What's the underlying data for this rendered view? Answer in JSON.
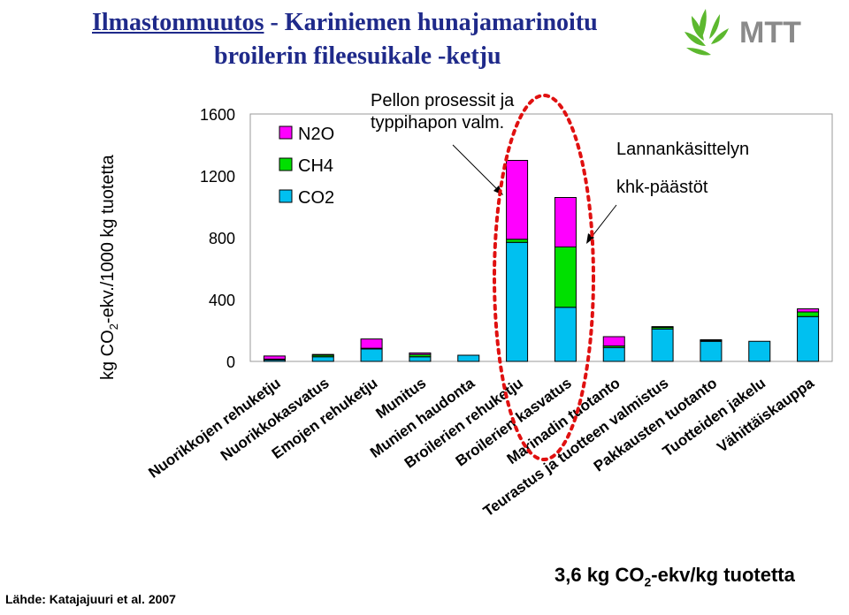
{
  "title": {
    "part1": "Ilmastonmuutos",
    "part2": " - Kariniemen hunajamarinoitu",
    "line2": "broilerin fileesuikale -ketju"
  },
  "logo": {
    "text": "MTT",
    "icon": "mtt-leaf-logo-icon"
  },
  "source": "Lähde: Katajajuuri et al. 2007",
  "total": {
    "prefix": "3,6 kg CO",
    "sub": "2",
    "suffix": "-ekv/kg tuotetta"
  },
  "annotations": {
    "field_line1": "Pellon prosessit ja",
    "field_line2": "typpihapon valm.",
    "manure_line1": "Lannankäsittelyn",
    "manure_line2": "khk-päästöt"
  },
  "chart_data": {
    "type": "bar",
    "stacked": true,
    "ylabel": {
      "prefix": "kg CO",
      "sub": "2",
      "suffix": "-ekv./1000 kg tuotetta"
    },
    "ylim": [
      0,
      1600
    ],
    "yticks": [
      0,
      400,
      800,
      1200,
      1600
    ],
    "categories": [
      "Nuorikkojen rehuketju",
      "Nuorikkokasvatus",
      "Emojen rehuketju",
      "Munitus",
      "Munien haudonta",
      "Broilerien rehuketju",
      "Broilerien kasvatus",
      "Marinadin tuotanto",
      "Teurastus ja tuotteen valmistus",
      "Pakkausten tuotanto",
      "Tuotteiden jakelu",
      "Vähittäiskauppa"
    ],
    "series": [
      {
        "name": "CO2",
        "color": "#00c0f0",
        "values": [
          10,
          30,
          80,
          30,
          40,
          770,
          350,
          90,
          210,
          130,
          130,
          290
        ]
      },
      {
        "name": "CH4",
        "color": "#00e000",
        "values": [
          5,
          10,
          5,
          15,
          0,
          20,
          390,
          10,
          10,
          5,
          0,
          30
        ]
      },
      {
        "name": "N2O",
        "color": "#ff00ff",
        "values": [
          20,
          5,
          60,
          10,
          0,
          510,
          320,
          60,
          5,
          5,
          0,
          20
        ]
      }
    ],
    "legend": {
      "position": "top-left",
      "order": [
        "N2O",
        "CH4",
        "CO2"
      ]
    },
    "grid": false,
    "highlight": "red dotted ellipse around Broilerien rehuketju and Broilerien kasvatus"
  }
}
